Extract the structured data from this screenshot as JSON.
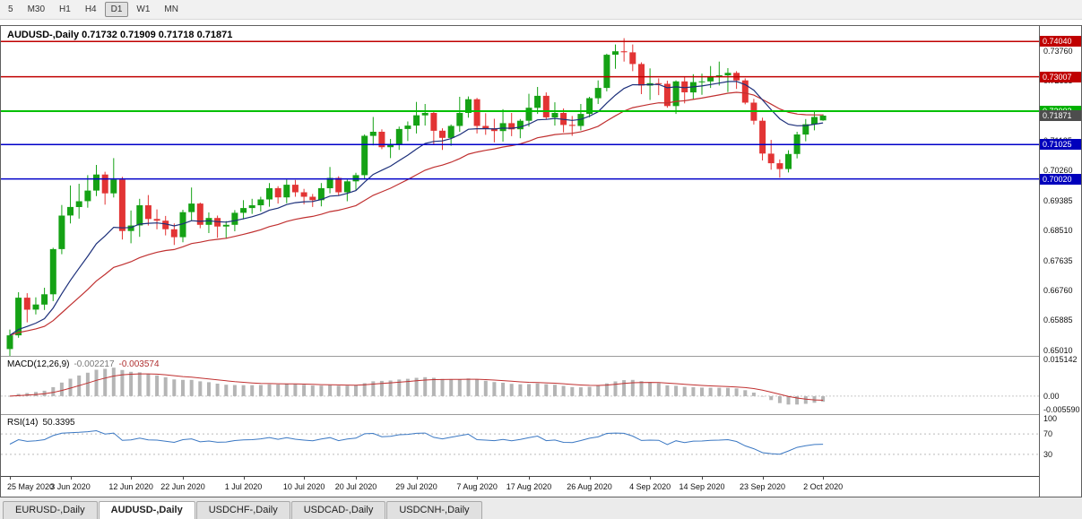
{
  "toolbar": {
    "timeframes": [
      "5",
      "M30",
      "H1",
      "H4",
      "D1",
      "W1",
      "MN"
    ],
    "active": "D1"
  },
  "chart": {
    "title": "AUDUSD-,Daily  0.71732 0.71909 0.71718 0.71871"
  },
  "indicators": {
    "macd": {
      "label": "MACD(12,26,9)",
      "value_main": "-0.002217",
      "value_signal": "-0.003574",
      "axis": [
        "0.015142",
        "0.00",
        "-0.005590"
      ]
    },
    "rsi": {
      "label": "RSI(14)",
      "value": "50.3395",
      "axis": [
        "100",
        "70",
        "30"
      ]
    }
  },
  "price_axis": {
    "grid_labels": [
      "0.73760",
      "0.72885",
      "0.72010",
      "0.71135",
      "0.70260",
      "0.69385",
      "0.68510",
      "0.67635",
      "0.66760",
      "0.65885",
      "0.65010"
    ],
    "badges": [
      {
        "text": "0.74040",
        "price": 0.7404,
        "color": "#c00000"
      },
      {
        "text": "0.73007",
        "price": 0.73007,
        "color": "#c00000"
      },
      {
        "text": "0.72002",
        "price": 0.72002,
        "color": "#00b000"
      },
      {
        "text": "0.71025",
        "price": 0.71025,
        "color": "#0000bc"
      },
      {
        "text": "0.70020",
        "price": 0.7002,
        "color": "#0000bc"
      },
      {
        "text": "0.71871",
        "price": 0.71871,
        "color": "#4d4d4d"
      }
    ]
  },
  "chart_data": {
    "type": "candlestick",
    "symbol": "AUDUSD-",
    "timeframe": "Daily",
    "ohlc_current": {
      "open": 0.71732,
      "high": 0.71909,
      "low": 0.71718,
      "close": 0.71871
    },
    "ylim": [
      0.6485,
      0.7449
    ],
    "up_color": "#15a215",
    "down_color": "#e23434",
    "candles": [
      [
        0.6505,
        0.6562,
        0.6481,
        0.6545
      ],
      [
        0.6545,
        0.6671,
        0.6538,
        0.6655
      ],
      [
        0.6655,
        0.6668,
        0.6583,
        0.662
      ],
      [
        0.662,
        0.6656,
        0.6606,
        0.6635
      ],
      [
        0.6635,
        0.6684,
        0.6619,
        0.6665
      ],
      [
        0.6665,
        0.6801,
        0.6645,
        0.6797
      ],
      [
        0.6797,
        0.6926,
        0.6782,
        0.6895
      ],
      [
        0.6895,
        0.6983,
        0.6872,
        0.692
      ],
      [
        0.692,
        0.6988,
        0.6886,
        0.6937
      ],
      [
        0.6937,
        0.7013,
        0.6918,
        0.6968
      ],
      [
        0.6968,
        0.7043,
        0.6952,
        0.7015
      ],
      [
        0.7015,
        0.7023,
        0.6927,
        0.696
      ],
      [
        0.696,
        0.7063,
        0.6948,
        0.7
      ],
      [
        0.7,
        0.7008,
        0.6825,
        0.685
      ],
      [
        0.685,
        0.691,
        0.6814,
        0.6866
      ],
      [
        0.6866,
        0.6944,
        0.6833,
        0.6925
      ],
      [
        0.6925,
        0.6955,
        0.6866,
        0.6885
      ],
      [
        0.6885,
        0.6913,
        0.6855,
        0.688
      ],
      [
        0.688,
        0.6894,
        0.6837,
        0.6855
      ],
      [
        0.6855,
        0.6872,
        0.6809,
        0.6832
      ],
      [
        0.6832,
        0.6912,
        0.6817,
        0.6905
      ],
      [
        0.6905,
        0.6977,
        0.6881,
        0.693
      ],
      [
        0.693,
        0.6933,
        0.6858,
        0.6868
      ],
      [
        0.6868,
        0.6904,
        0.6844,
        0.6888
      ],
      [
        0.6888,
        0.6895,
        0.683,
        0.6863
      ],
      [
        0.6863,
        0.6879,
        0.6827,
        0.6868
      ],
      [
        0.6868,
        0.6911,
        0.6849,
        0.6903
      ],
      [
        0.6903,
        0.694,
        0.6884,
        0.6917
      ],
      [
        0.6917,
        0.6944,
        0.69,
        0.6925
      ],
      [
        0.6925,
        0.695,
        0.6907,
        0.6942
      ],
      [
        0.6942,
        0.699,
        0.6921,
        0.6975
      ],
      [
        0.6975,
        0.6981,
        0.693,
        0.6948
      ],
      [
        0.6948,
        0.7,
        0.6931,
        0.6985
      ],
      [
        0.6985,
        0.6999,
        0.695,
        0.6963
      ],
      [
        0.6963,
        0.6973,
        0.6928,
        0.695
      ],
      [
        0.695,
        0.6958,
        0.692,
        0.694
      ],
      [
        0.694,
        0.699,
        0.6922,
        0.6975
      ],
      [
        0.6975,
        0.7037,
        0.696,
        0.7005
      ],
      [
        0.7005,
        0.701,
        0.6954,
        0.6963
      ],
      [
        0.6963,
        0.7,
        0.6937,
        0.6995
      ],
      [
        0.6995,
        0.702,
        0.697,
        0.7013
      ],
      [
        0.7013,
        0.7132,
        0.7,
        0.7128
      ],
      [
        0.7128,
        0.7183,
        0.71,
        0.714
      ],
      [
        0.714,
        0.7147,
        0.7089,
        0.7095
      ],
      [
        0.7095,
        0.7119,
        0.7063,
        0.7103
      ],
      [
        0.7103,
        0.7155,
        0.7087,
        0.7148
      ],
      [
        0.7148,
        0.717,
        0.7113,
        0.7158
      ],
      [
        0.7158,
        0.7227,
        0.7135,
        0.7188
      ],
      [
        0.7188,
        0.7221,
        0.7158,
        0.7195
      ],
      [
        0.7195,
        0.72,
        0.7104,
        0.7143
      ],
      [
        0.7143,
        0.715,
        0.7087,
        0.7122
      ],
      [
        0.7122,
        0.7161,
        0.7099,
        0.7157
      ],
      [
        0.7157,
        0.7242,
        0.714,
        0.7195
      ],
      [
        0.7195,
        0.7243,
        0.7181,
        0.7235
      ],
      [
        0.7235,
        0.7239,
        0.7135,
        0.7157
      ],
      [
        0.7157,
        0.7194,
        0.7131,
        0.715
      ],
      [
        0.715,
        0.7178,
        0.7109,
        0.7142
      ],
      [
        0.7142,
        0.7206,
        0.7111,
        0.7165
      ],
      [
        0.7165,
        0.7195,
        0.7127,
        0.7147
      ],
      [
        0.7147,
        0.7177,
        0.7121,
        0.7172
      ],
      [
        0.7172,
        0.7251,
        0.7155,
        0.721
      ],
      [
        0.721,
        0.7271,
        0.7192,
        0.7245
      ],
      [
        0.7245,
        0.7255,
        0.7176,
        0.7182
      ],
      [
        0.7182,
        0.7226,
        0.7158,
        0.7195
      ],
      [
        0.7195,
        0.7208,
        0.7138,
        0.716
      ],
      [
        0.716,
        0.7186,
        0.7128,
        0.7157
      ],
      [
        0.7157,
        0.7221,
        0.7144,
        0.7192
      ],
      [
        0.7192,
        0.7242,
        0.7182,
        0.7238
      ],
      [
        0.7238,
        0.729,
        0.7221,
        0.7268
      ],
      [
        0.7268,
        0.7368,
        0.7258,
        0.7365
      ],
      [
        0.7365,
        0.7395,
        0.7324,
        0.7375
      ],
      [
        0.7375,
        0.74134,
        0.7345,
        0.7372
      ],
      [
        0.7372,
        0.7395,
        0.7317,
        0.7338
      ],
      [
        0.7338,
        0.7343,
        0.725,
        0.7275
      ],
      [
        0.7275,
        0.7325,
        0.7233,
        0.7282
      ],
      [
        0.7282,
        0.7296,
        0.7247,
        0.728
      ],
      [
        0.728,
        0.7289,
        0.721,
        0.7215
      ],
      [
        0.7215,
        0.729,
        0.7192,
        0.7287
      ],
      [
        0.7287,
        0.73,
        0.7223,
        0.7255
      ],
      [
        0.7255,
        0.7308,
        0.7235,
        0.7285
      ],
      [
        0.7285,
        0.731,
        0.7248,
        0.7287
      ],
      [
        0.7287,
        0.7332,
        0.7268,
        0.7301
      ],
      [
        0.7301,
        0.7345,
        0.7275,
        0.7305
      ],
      [
        0.7305,
        0.7326,
        0.7256,
        0.7312
      ],
      [
        0.7312,
        0.7317,
        0.7265,
        0.729
      ],
      [
        0.729,
        0.7296,
        0.722,
        0.7225
      ],
      [
        0.7225,
        0.7236,
        0.7161,
        0.7172
      ],
      [
        0.7172,
        0.7181,
        0.7056,
        0.7076
      ],
      [
        0.7076,
        0.7116,
        0.7029,
        0.7048
      ],
      [
        0.7048,
        0.7059,
        0.7006,
        0.7031
      ],
      [
        0.7031,
        0.7086,
        0.7021,
        0.7075
      ],
      [
        0.7075,
        0.714,
        0.7062,
        0.7132
      ],
      [
        0.7132,
        0.7177,
        0.7112,
        0.7162
      ],
      [
        0.7162,
        0.7199,
        0.7144,
        0.7183
      ],
      [
        0.71732,
        0.71909,
        0.71718,
        0.71871
      ]
    ],
    "x_ticks": [
      {
        "i": 0,
        "label": "25 May 2020"
      },
      {
        "i": 7,
        "label": "3 Jun 2020"
      },
      {
        "i": 14,
        "label": "12 Jun 2020"
      },
      {
        "i": 20,
        "label": "22 Jun 2020"
      },
      {
        "i": 27,
        "label": "1 Jul 2020"
      },
      {
        "i": 34,
        "label": "10 Jul 2020"
      },
      {
        "i": 40,
        "label": "20 Jul 2020"
      },
      {
        "i": 47,
        "label": "29 Jul 2020"
      },
      {
        "i": 54,
        "label": "7 Aug 2020"
      },
      {
        "i": 60,
        "label": "17 Aug 2020"
      },
      {
        "i": 67,
        "label": "26 Aug 2020"
      },
      {
        "i": 74,
        "label": "4 Sep 2020"
      },
      {
        "i": 80,
        "label": "14 Sep 2020"
      },
      {
        "i": 87,
        "label": "23 Sep 2020"
      },
      {
        "i": 94,
        "label": "2 Oct 2020"
      }
    ],
    "hlines": [
      {
        "price": 0.7404,
        "color": "#c00000",
        "width": 1.5
      },
      {
        "price": 0.73007,
        "color": "#c00000",
        "width": 1.5
      },
      {
        "price": 0.72002,
        "color": "#00c000",
        "width": 2
      },
      {
        "price": 0.71025,
        "color": "#0000c8",
        "width": 1.5
      },
      {
        "price": 0.7002,
        "color": "#0000c8",
        "width": 1.5
      }
    ],
    "moving_averages": [
      {
        "name": "ma-slow",
        "period": 26,
        "color": "#c03030"
      },
      {
        "name": "ma-fast",
        "period": 12,
        "color": "#1c2f7a"
      }
    ],
    "macd": {
      "fast": 12,
      "slow": 26,
      "signal": 9,
      "ylim": [
        -0.00559,
        0.015142
      ],
      "hist_color": "#b5b5b5",
      "signal_color": "#c03030"
    },
    "rsi": {
      "period": 14,
      "ylim": [
        0,
        100
      ],
      "levels": [
        70,
        30
      ],
      "color": "#3b78c3"
    }
  },
  "tabs": {
    "items": [
      "EURUSD-,Daily",
      "AUDUSD-,Daily",
      "USDCHF-,Daily",
      "USDCAD-,Daily",
      "USDCNH-,Daily"
    ],
    "active": "AUDUSD-,Daily"
  }
}
